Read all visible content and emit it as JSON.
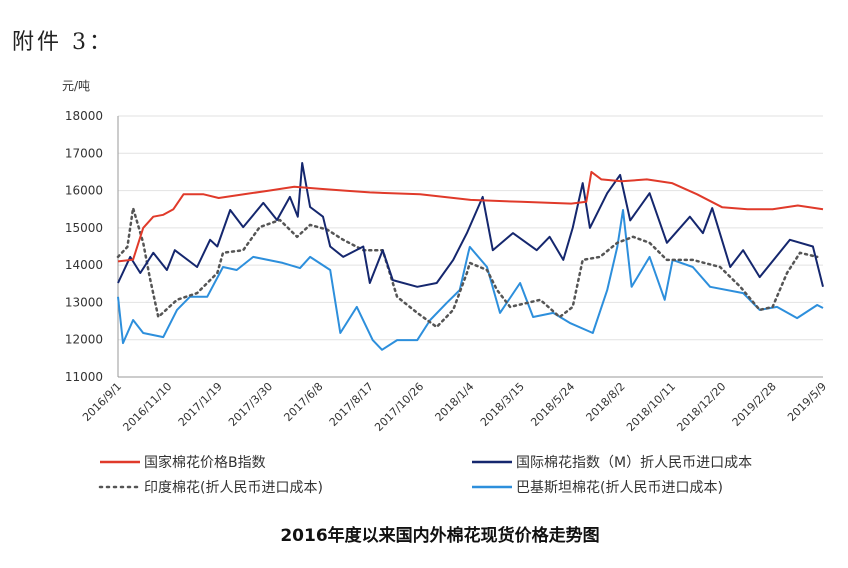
{
  "attachment_label": "附件 3：",
  "chart_data": {
    "type": "line",
    "title": "2016年度以来国内外棉花现货价格走势图",
    "ylabel": "元/吨",
    "xlabel": "",
    "x_unit": "days since 2016/9/1",
    "ylim": [
      11000,
      18000
    ],
    "yticks": [
      11000,
      12000,
      13000,
      14000,
      15000,
      16000,
      17000,
      18000
    ],
    "xlim": [
      0,
      980
    ],
    "xtick_labels": [
      "2016/9/1",
      "2016/11/10",
      "2017/1/19",
      "2017/3/30",
      "2017/6/8",
      "2017/8/17",
      "2017/10/26",
      "2018/1/4",
      "2018/3/15",
      "2018/5/24",
      "2018/8/2",
      "2018/10/11",
      "2018/12/20",
      "2019/2/28",
      "2019/5/9"
    ],
    "xtick_step_days": 70,
    "grid": "horizontal",
    "legend_placement": "bottom",
    "series": [
      {
        "name": "国家棉花价格B指数",
        "color": "#e03a2a",
        "style": "solid",
        "points": [
          [
            0,
            14100
          ],
          [
            21,
            14150
          ],
          [
            35,
            15000
          ],
          [
            49,
            15300
          ],
          [
            63,
            15350
          ],
          [
            77,
            15500
          ],
          [
            91,
            15900
          ],
          [
            119,
            15900
          ],
          [
            140,
            15800
          ],
          [
            175,
            15900
          ],
          [
            210,
            16000
          ],
          [
            245,
            16100
          ],
          [
            280,
            16050
          ],
          [
            315,
            16000
          ],
          [
            350,
            15950
          ],
          [
            420,
            15900
          ],
          [
            490,
            15750
          ],
          [
            560,
            15700
          ],
          [
            630,
            15650
          ],
          [
            651,
            15700
          ],
          [
            658,
            16500
          ],
          [
            672,
            16300
          ],
          [
            700,
            16250
          ],
          [
            735,
            16300
          ],
          [
            770,
            16200
          ],
          [
            805,
            15900
          ],
          [
            840,
            15550
          ],
          [
            875,
            15500
          ],
          [
            910,
            15500
          ],
          [
            945,
            15600
          ],
          [
            980,
            15500
          ]
        ]
      },
      {
        "name": "国际棉花指数（M）折人民币进口成本",
        "color": "#15276e",
        "style": "solid",
        "points": [
          [
            0,
            13520
          ],
          [
            17,
            14220
          ],
          [
            31,
            13790
          ],
          [
            49,
            14330
          ],
          [
            68,
            13870
          ],
          [
            79,
            14400
          ],
          [
            110,
            13950
          ],
          [
            128,
            14680
          ],
          [
            138,
            14500
          ],
          [
            156,
            15480
          ],
          [
            174,
            15020
          ],
          [
            202,
            15670
          ],
          [
            221,
            15210
          ],
          [
            239,
            15830
          ],
          [
            250,
            15300
          ],
          [
            256,
            16740
          ],
          [
            267,
            15560
          ],
          [
            285,
            15300
          ],
          [
            295,
            14500
          ],
          [
            313,
            14220
          ],
          [
            341,
            14500
          ],
          [
            350,
            13520
          ],
          [
            368,
            14400
          ],
          [
            382,
            13600
          ],
          [
            416,
            13420
          ],
          [
            443,
            13520
          ],
          [
            466,
            14140
          ],
          [
            485,
            14860
          ],
          [
            507,
            15830
          ],
          [
            521,
            14400
          ],
          [
            549,
            14860
          ],
          [
            582,
            14400
          ],
          [
            600,
            14760
          ],
          [
            619,
            14140
          ],
          [
            632,
            15000
          ],
          [
            646,
            16200
          ],
          [
            656,
            15000
          ],
          [
            680,
            15930
          ],
          [
            698,
            16420
          ],
          [
            712,
            15200
          ],
          [
            739,
            15930
          ],
          [
            763,
            14600
          ],
          [
            795,
            15300
          ],
          [
            813,
            14860
          ],
          [
            826,
            15530
          ],
          [
            851,
            13950
          ],
          [
            869,
            14400
          ],
          [
            892,
            13680
          ],
          [
            934,
            14680
          ],
          [
            966,
            14500
          ],
          [
            980,
            13420
          ]
        ]
      },
      {
        "name": "印度棉花(折人民币进口成本)",
        "color": "#555555",
        "style": "dotted",
        "points": [
          [
            0,
            14220
          ],
          [
            13,
            14490
          ],
          [
            21,
            15530
          ],
          [
            35,
            14600
          ],
          [
            44,
            13680
          ],
          [
            56,
            12610
          ],
          [
            82,
            13070
          ],
          [
            110,
            13250
          ],
          [
            138,
            13790
          ],
          [
            146,
            14330
          ],
          [
            174,
            14400
          ],
          [
            197,
            15020
          ],
          [
            225,
            15210
          ],
          [
            249,
            14760
          ],
          [
            267,
            15080
          ],
          [
            291,
            14950
          ],
          [
            313,
            14680
          ],
          [
            341,
            14400
          ],
          [
            368,
            14400
          ],
          [
            388,
            13150
          ],
          [
            416,
            12720
          ],
          [
            443,
            12340
          ],
          [
            466,
            12800
          ],
          [
            485,
            13790
          ],
          [
            489,
            14060
          ],
          [
            513,
            13870
          ],
          [
            527,
            13330
          ],
          [
            545,
            12880
          ],
          [
            587,
            13070
          ],
          [
            614,
            12610
          ],
          [
            632,
            12880
          ],
          [
            646,
            14140
          ],
          [
            670,
            14220
          ],
          [
            694,
            14600
          ],
          [
            716,
            14760
          ],
          [
            739,
            14600
          ],
          [
            763,
            14140
          ],
          [
            799,
            14140
          ],
          [
            837,
            13950
          ],
          [
            865,
            13420
          ],
          [
            892,
            12800
          ],
          [
            910,
            12880
          ],
          [
            930,
            13790
          ],
          [
            948,
            14330
          ],
          [
            972,
            14220
          ]
        ]
      },
      {
        "name": "巴基斯坦棉花(折人民币进口成本)",
        "color": "#2d8fdc",
        "style": "solid",
        "points": [
          [
            0,
            13150
          ],
          [
            7,
            11910
          ],
          [
            21,
            12530
          ],
          [
            35,
            12180
          ],
          [
            63,
            12070
          ],
          [
            82,
            12800
          ],
          [
            100,
            13150
          ],
          [
            124,
            13150
          ],
          [
            146,
            13950
          ],
          [
            165,
            13870
          ],
          [
            188,
            14220
          ],
          [
            229,
            14060
          ],
          [
            253,
            13920
          ],
          [
            267,
            14220
          ],
          [
            295,
            13870
          ],
          [
            309,
            12180
          ],
          [
            332,
            12880
          ],
          [
            354,
            11990
          ],
          [
            367,
            11730
          ],
          [
            388,
            11990
          ],
          [
            416,
            11990
          ],
          [
            434,
            12530
          ],
          [
            457,
            12990
          ],
          [
            475,
            13330
          ],
          [
            487,
            14330
          ],
          [
            489,
            14490
          ],
          [
            513,
            13950
          ],
          [
            531,
            12720
          ],
          [
            559,
            13520
          ],
          [
            577,
            12610
          ],
          [
            605,
            12720
          ],
          [
            628,
            12450
          ],
          [
            660,
            12180
          ],
          [
            680,
            13330
          ],
          [
            694,
            14490
          ],
          [
            702,
            15480
          ],
          [
            714,
            13420
          ],
          [
            739,
            14220
          ],
          [
            760,
            13070
          ],
          [
            771,
            14140
          ],
          [
            799,
            13950
          ],
          [
            823,
            13420
          ],
          [
            869,
            13250
          ],
          [
            892,
            12800
          ],
          [
            916,
            12880
          ],
          [
            944,
            12580
          ],
          [
            972,
            12930
          ],
          [
            980,
            12850
          ]
        ]
      }
    ]
  }
}
